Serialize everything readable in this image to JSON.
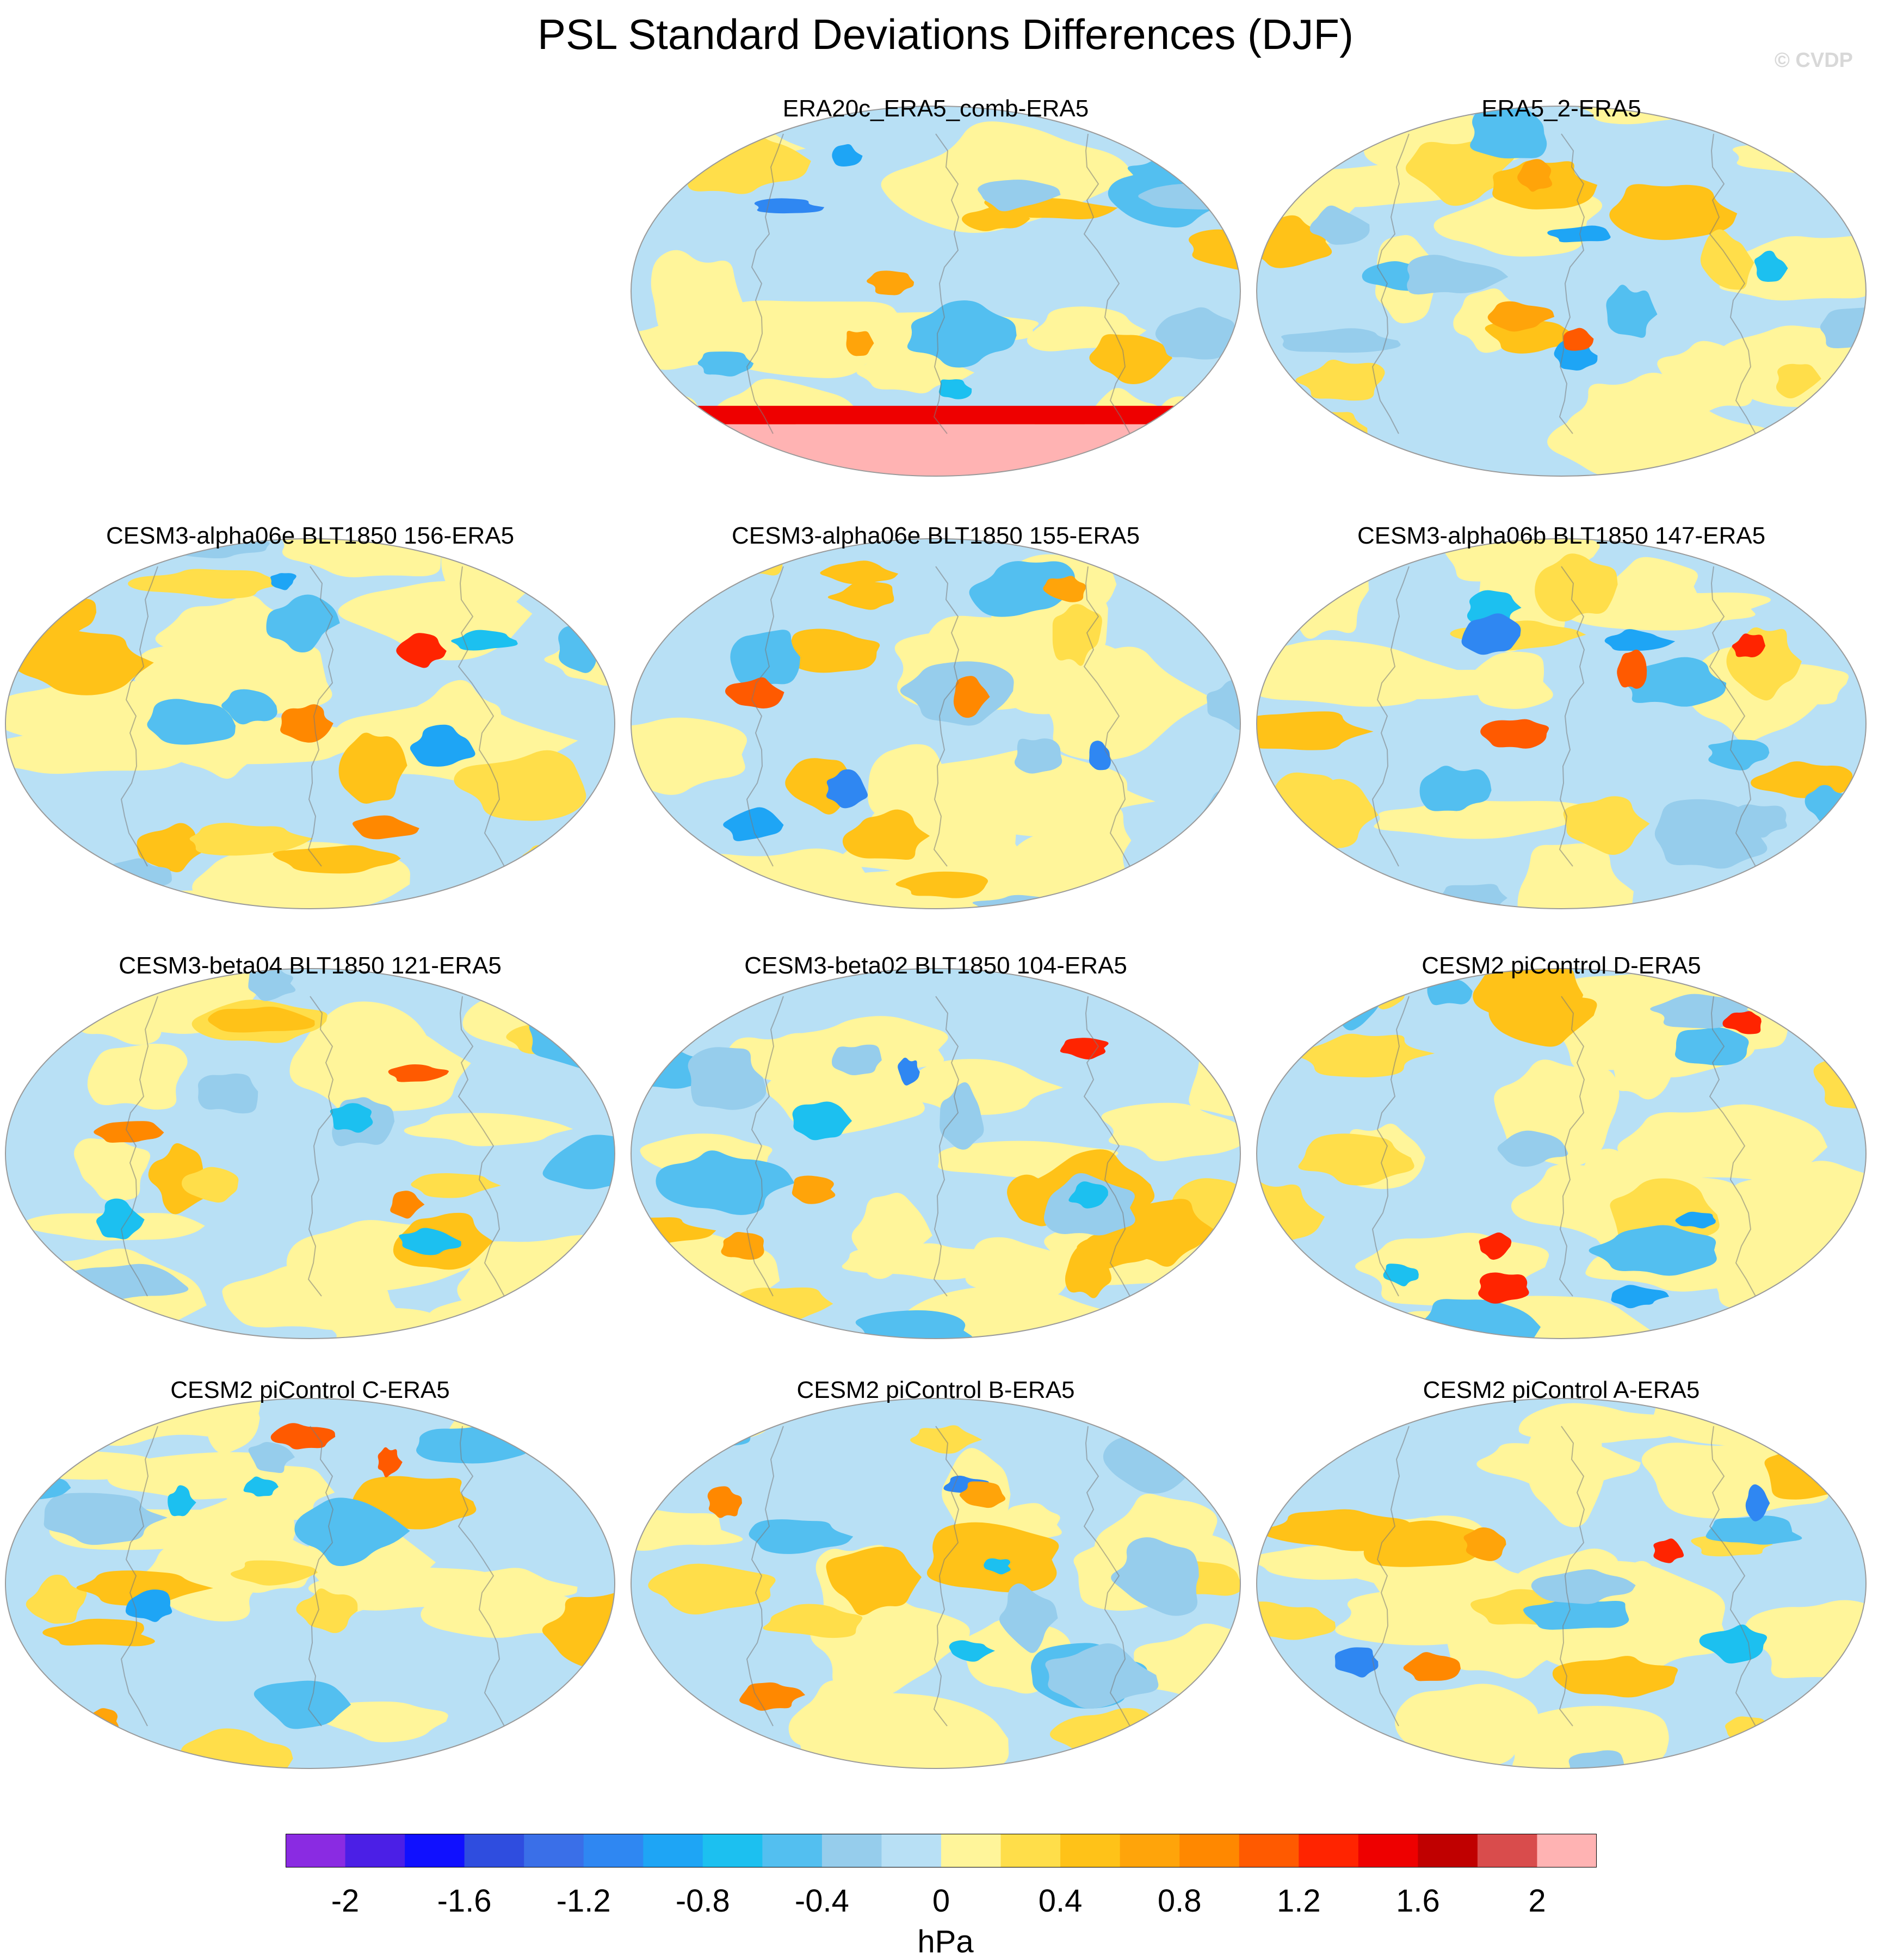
{
  "figure_title": "PSL Standard Deviations Differences (DJF)",
  "credit": "© CVDP",
  "colorbar": {
    "units": "hPa",
    "tick_labels": [
      "-2",
      "-1.6",
      "-1.2",
      "-0.8",
      "-0.4",
      "0",
      "0.4",
      "0.8",
      "1.2",
      "1.6",
      "2"
    ],
    "colors": [
      "#8a2be2",
      "#4b1fe6",
      "#1010ff",
      "#2f4ddf",
      "#3a6fe8",
      "#2f87f2",
      "#1ea5f5",
      "#1cc0f0",
      "#53bff0",
      "#96cdec",
      "#b8e0f5",
      "#fff59a",
      "#ffde4a",
      "#ffc218",
      "#ffa40a",
      "#ff8800",
      "#ff5a00",
      "#ff2400",
      "#ee0000",
      "#c00000",
      "#d94c4c",
      "#ffb3b3"
    ]
  },
  "chart_data": {
    "type": "heatmap",
    "title": "PSL Standard Deviations Differences (DJF)",
    "projection": "global map",
    "units": "hPa",
    "contour_range": [
      -2.2,
      2.2
    ],
    "contour_interval": 0.2,
    "panels": [
      {
        "title": "ERA20c_ERA5_comb-ERA5",
        "grid_position": "row 1, column 2"
      },
      {
        "title": "ERA5_2-ERA5",
        "grid_position": "row 1, column 3"
      },
      {
        "title": "CESM3-alpha06e BLT1850 156-ERA5",
        "grid_position": "row 2, column 1"
      },
      {
        "title": "CESM3-alpha06e BLT1850 155-ERA5",
        "grid_position": "row 2, column 2"
      },
      {
        "title": "CESM3-alpha06b BLT1850 147-ERA5",
        "grid_position": "row 2, column 3"
      },
      {
        "title": "CESM3-beta04 BLT1850 121-ERA5",
        "grid_position": "row 3, column 1"
      },
      {
        "title": "CESM3-beta02 BLT1850 104-ERA5",
        "grid_position": "row 3, column 2"
      },
      {
        "title": "CESM2 piControl D-ERA5",
        "grid_position": "row 3, column 3"
      },
      {
        "title": "CESM2 piControl C-ERA5",
        "grid_position": "row 4, column 1"
      },
      {
        "title": "CESM2 piControl B-ERA5",
        "grid_position": "row 4, column 2"
      },
      {
        "title": "CESM2 piControl A-ERA5",
        "grid_position": "row 4, column 3"
      }
    ]
  }
}
